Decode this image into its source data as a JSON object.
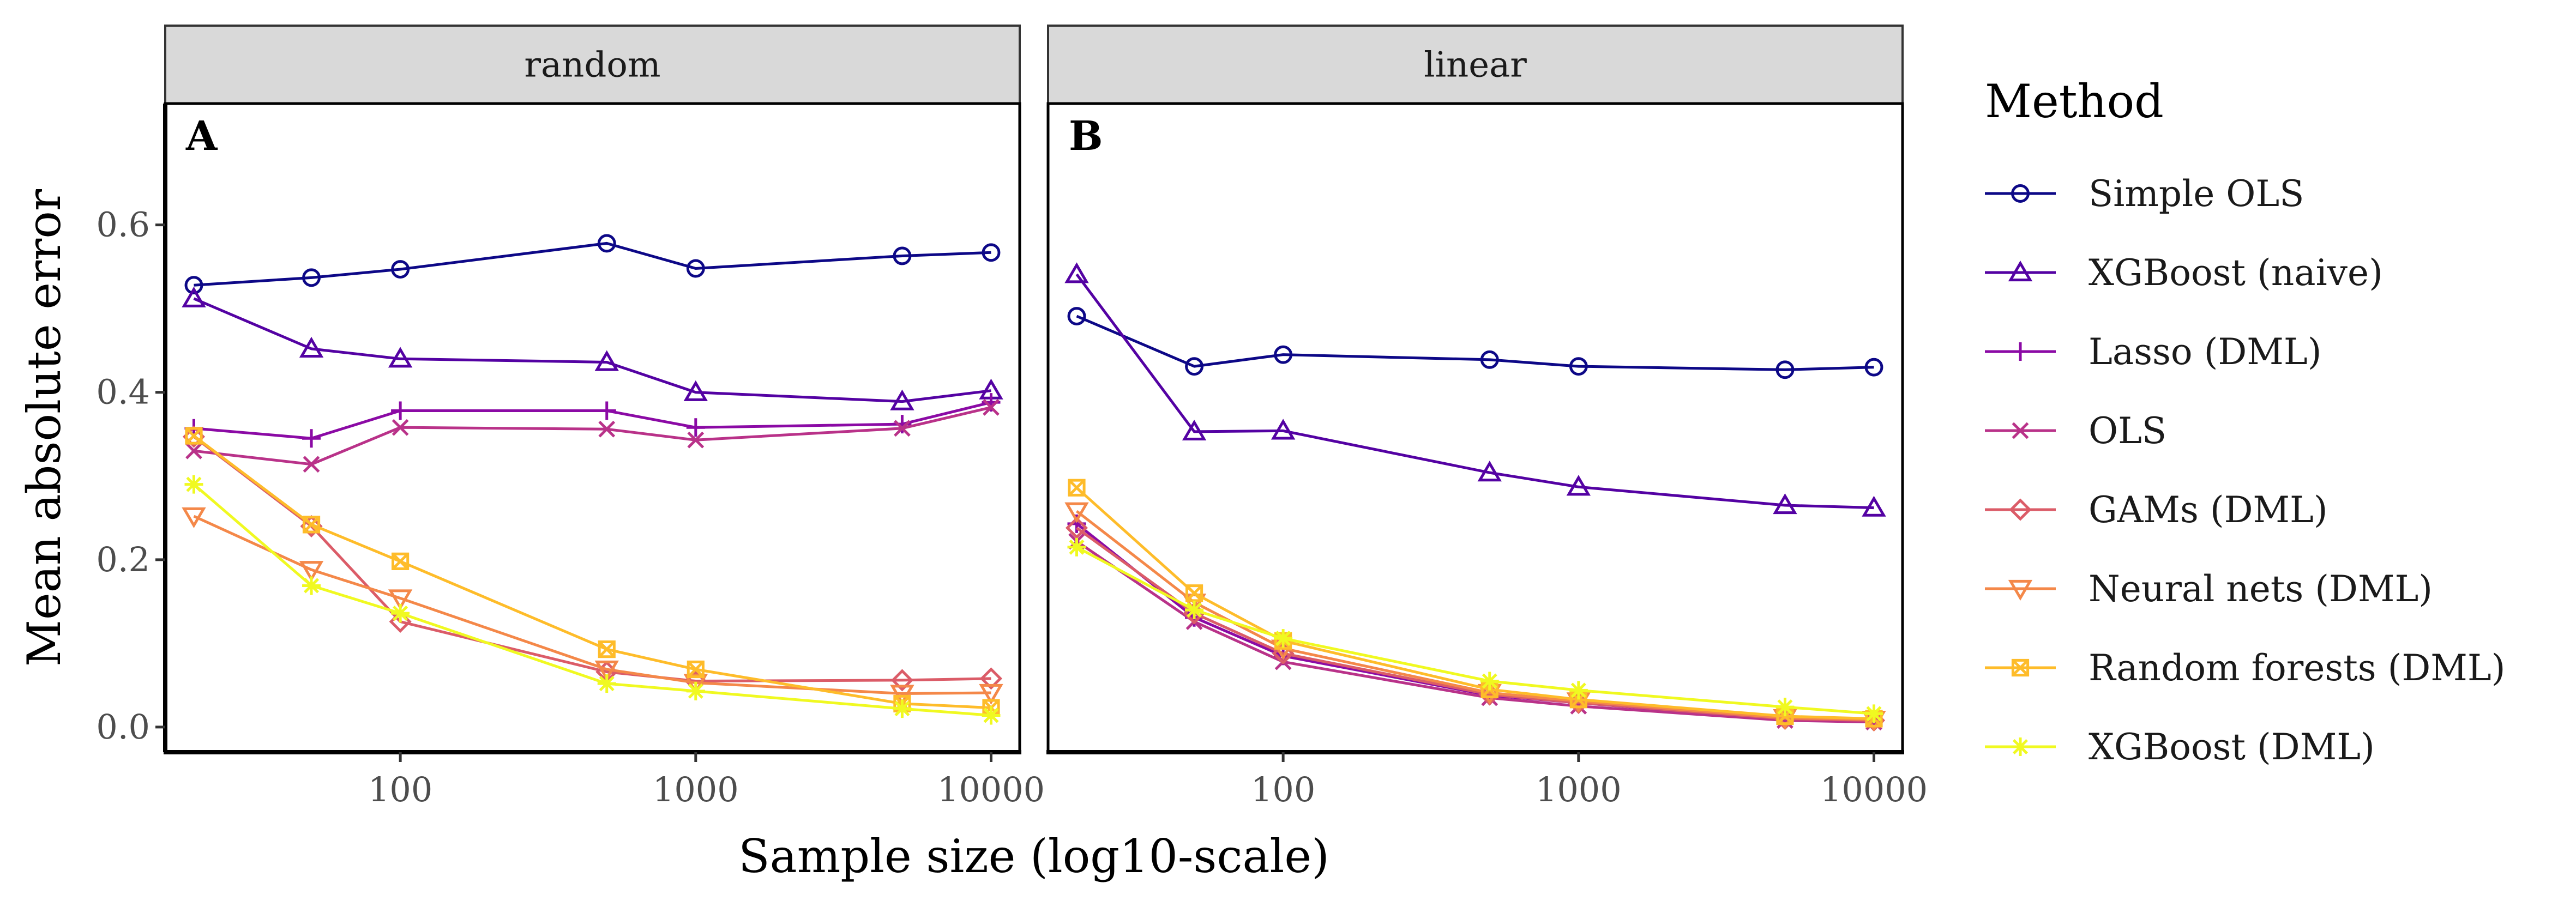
{
  "chart_data": {
    "type": "line",
    "ylabel": "Mean absolute error",
    "xlabel": "Sample size (log10-scale)",
    "x_scale": "log10",
    "x": [
      20,
      50,
      100,
      500,
      1000,
      5000,
      10000
    ],
    "x_ticks": [
      100,
      1000,
      10000
    ],
    "x_tick_labels": [
      "100",
      "1000",
      "10000"
    ],
    "xlim": [
      16,
      12500
    ],
    "ylim": [
      -0.03,
      0.745
    ],
    "y_ticks": [
      0.0,
      0.2,
      0.4,
      0.6
    ],
    "y_tick_labels": [
      "0.0",
      "0.2",
      "0.4",
      "0.6"
    ],
    "grid": false,
    "legend": {
      "title": "Method",
      "position": "right",
      "entries": [
        {
          "name": "Simple OLS",
          "color": "#0D0887",
          "shape": "circle"
        },
        {
          "name": "XGBoost (naive)",
          "color": "#5402A3",
          "shape": "triangle"
        },
        {
          "name": "Lasso (DML)",
          "color": "#8B0AA5",
          "shape": "plus"
        },
        {
          "name": "OLS",
          "color": "#B93289",
          "shape": "cross"
        },
        {
          "name": "GAMs (DML)",
          "color": "#DB5C68",
          "shape": "diamond"
        },
        {
          "name": "Neural nets (DML)",
          "color": "#F48849",
          "shape": "triangle-down"
        },
        {
          "name": "Random forests (DML)",
          "color": "#FEBC2A",
          "shape": "square-x"
        },
        {
          "name": "XGBoost (DML)",
          "color": "#F0F921",
          "shape": "star"
        }
      ]
    },
    "panels": [
      {
        "strip": "random",
        "tag": "A",
        "series": [
          {
            "name": "Simple OLS",
            "values": [
              0.528,
              0.537,
              0.547,
              0.578,
              0.548,
              0.563,
              0.567
            ]
          },
          {
            "name": "XGBoost (naive)",
            "values": [
              0.512,
              0.452,
              0.44,
              0.436,
              0.4,
              0.389,
              0.402
            ]
          },
          {
            "name": "Lasso (DML)",
            "values": [
              0.357,
              0.345,
              0.378,
              0.378,
              0.358,
              0.362,
              0.388
            ]
          },
          {
            "name": "OLS",
            "values": [
              0.33,
              0.314,
              0.358,
              0.356,
              0.343,
              0.357,
              0.382
            ]
          },
          {
            "name": "GAMs (DML)",
            "values": [
              0.347,
              0.24,
              0.126,
              0.066,
              0.055,
              0.056,
              0.058
            ]
          },
          {
            "name": "Neural nets (DML)",
            "values": [
              0.252,
              0.188,
              0.154,
              0.069,
              0.053,
              0.04,
              0.041
            ]
          },
          {
            "name": "Random forests (DML)",
            "values": [
              0.348,
              0.242,
              0.198,
              0.093,
              0.069,
              0.028,
              0.023
            ]
          },
          {
            "name": "XGBoost (DML)",
            "values": [
              0.29,
              0.169,
              0.136,
              0.052,
              0.043,
              0.022,
              0.014
            ]
          }
        ]
      },
      {
        "strip": "linear",
        "tag": "B",
        "series": [
          {
            "name": "Simple OLS",
            "values": [
              0.491,
              0.431,
              0.445,
              0.439,
              0.431,
              0.427,
              0.43
            ]
          },
          {
            "name": "XGBoost (naive)",
            "values": [
              0.541,
              0.353,
              0.354,
              0.304,
              0.287,
              0.265,
              0.262
            ]
          },
          {
            "name": "Lasso (DML)",
            "values": [
              0.243,
              0.131,
              0.085,
              0.038,
              0.029,
              0.009,
              0.007
            ]
          },
          {
            "name": "OLS",
            "values": [
              0.222,
              0.126,
              0.078,
              0.035,
              0.025,
              0.008,
              0.006
            ]
          },
          {
            "name": "GAMs (DML)",
            "values": [
              0.238,
              0.136,
              0.088,
              0.039,
              0.029,
              0.01,
              0.008
            ]
          },
          {
            "name": "Neural nets (DML)",
            "values": [
              0.258,
              0.149,
              0.094,
              0.041,
              0.031,
              0.011,
              0.009
            ]
          },
          {
            "name": "Random forests (DML)",
            "values": [
              0.286,
              0.16,
              0.103,
              0.045,
              0.033,
              0.013,
              0.01
            ]
          },
          {
            "name": "XGBoost (DML)",
            "values": [
              0.215,
              0.14,
              0.106,
              0.055,
              0.044,
              0.024,
              0.016
            ]
          }
        ]
      }
    ]
  }
}
